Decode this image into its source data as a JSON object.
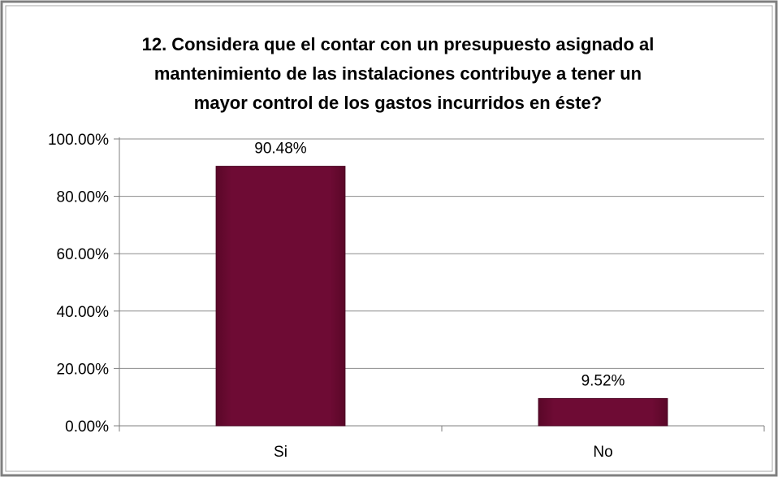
{
  "chart_data": {
    "type": "bar",
    "title_lines": [
      "12. Considera que el contar con un presupuesto asignado al",
      "mantenimiento de las instalaciones contribuye a tener un",
      "mayor control de los gastos incurridos en éste?"
    ],
    "categories": [
      "Si",
      "No"
    ],
    "values": [
      90.48,
      9.52
    ],
    "data_labels": [
      "90.48%",
      "9.52%"
    ],
    "y_ticks": [
      0,
      20,
      40,
      60,
      80,
      100
    ],
    "y_tick_labels": [
      "0.00%",
      "20.00%",
      "40.00%",
      "60.00%",
      "80.00%",
      "100.00%"
    ],
    "ylim": [
      0,
      100
    ],
    "grid": true,
    "legend": "none",
    "bar_color": "#6e0b34",
    "bar_edge_color": "#4a0422"
  }
}
